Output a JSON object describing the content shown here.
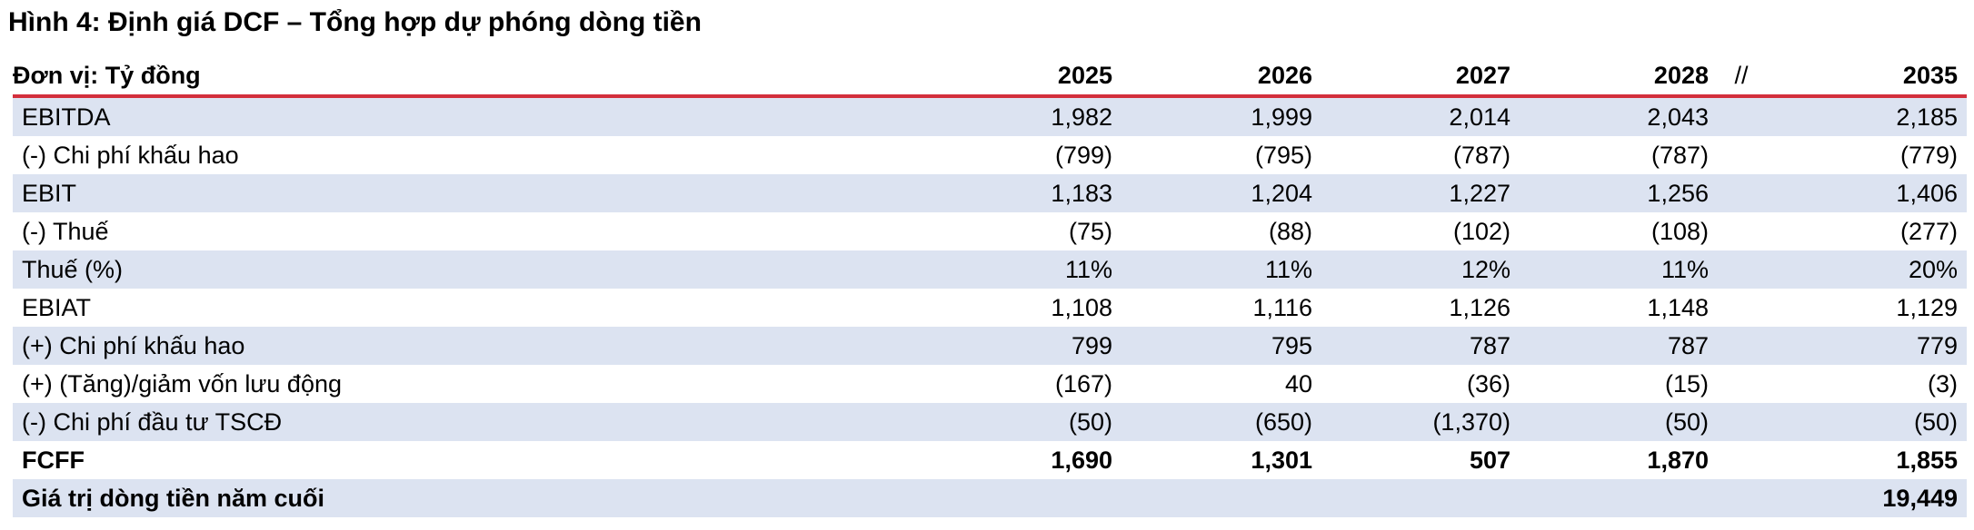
{
  "title": "Hình 4: Định giá DCF – Tổng hợp dự phóng dòng tiền",
  "header": {
    "unit": "Đơn vị: Tỷ đồng",
    "years": [
      "2025",
      "2026",
      "2027",
      "2028"
    ],
    "gap": "//",
    "last_year": "2035"
  },
  "rows": [
    {
      "label": "EBITDA",
      "values": [
        "1,982",
        "1,999",
        "2,014",
        "2,043"
      ],
      "last": "2,185"
    },
    {
      "label": "(-) Chi phí khấu hao",
      "values": [
        "(799)",
        "(795)",
        "(787)",
        "(787)"
      ],
      "last": "(779)"
    },
    {
      "label": "EBIT",
      "values": [
        "1,183",
        "1,204",
        "1,227",
        "1,256"
      ],
      "last": "1,406"
    },
    {
      "label": "(-) Thuế",
      "values": [
        "(75)",
        "(88)",
        "(102)",
        "(108)"
      ],
      "last": "(277)"
    },
    {
      "label": "Thuế (%)",
      "values": [
        "11%",
        "11%",
        "12%",
        "11%"
      ],
      "last": "20%"
    },
    {
      "label": "EBIAT",
      "values": [
        "1,108",
        "1,116",
        "1,126",
        "1,148"
      ],
      "last": "1,129"
    },
    {
      "label": "(+) Chi phí khấu hao",
      "values": [
        "799",
        "795",
        "787",
        "787"
      ],
      "last": "779"
    },
    {
      "label": "(+) (Tăng)/giảm vốn lưu động",
      "values": [
        "(167)",
        "40",
        "(36)",
        "(15)"
      ],
      "last": "(3)"
    },
    {
      "label": "(-) Chi phí đầu tư TSCĐ",
      "values": [
        "(50)",
        "(650)",
        "(1,370)",
        "(50)"
      ],
      "last": "(50)"
    },
    {
      "label": "FCFF",
      "values": [
        "1,690",
        "1,301",
        "507",
        "1,870"
      ],
      "last": "1,855"
    },
    {
      "label": "Giá trị dòng tiền năm cuối",
      "values": [
        "",
        "",
        "",
        ""
      ],
      "last": "19,449"
    }
  ]
}
